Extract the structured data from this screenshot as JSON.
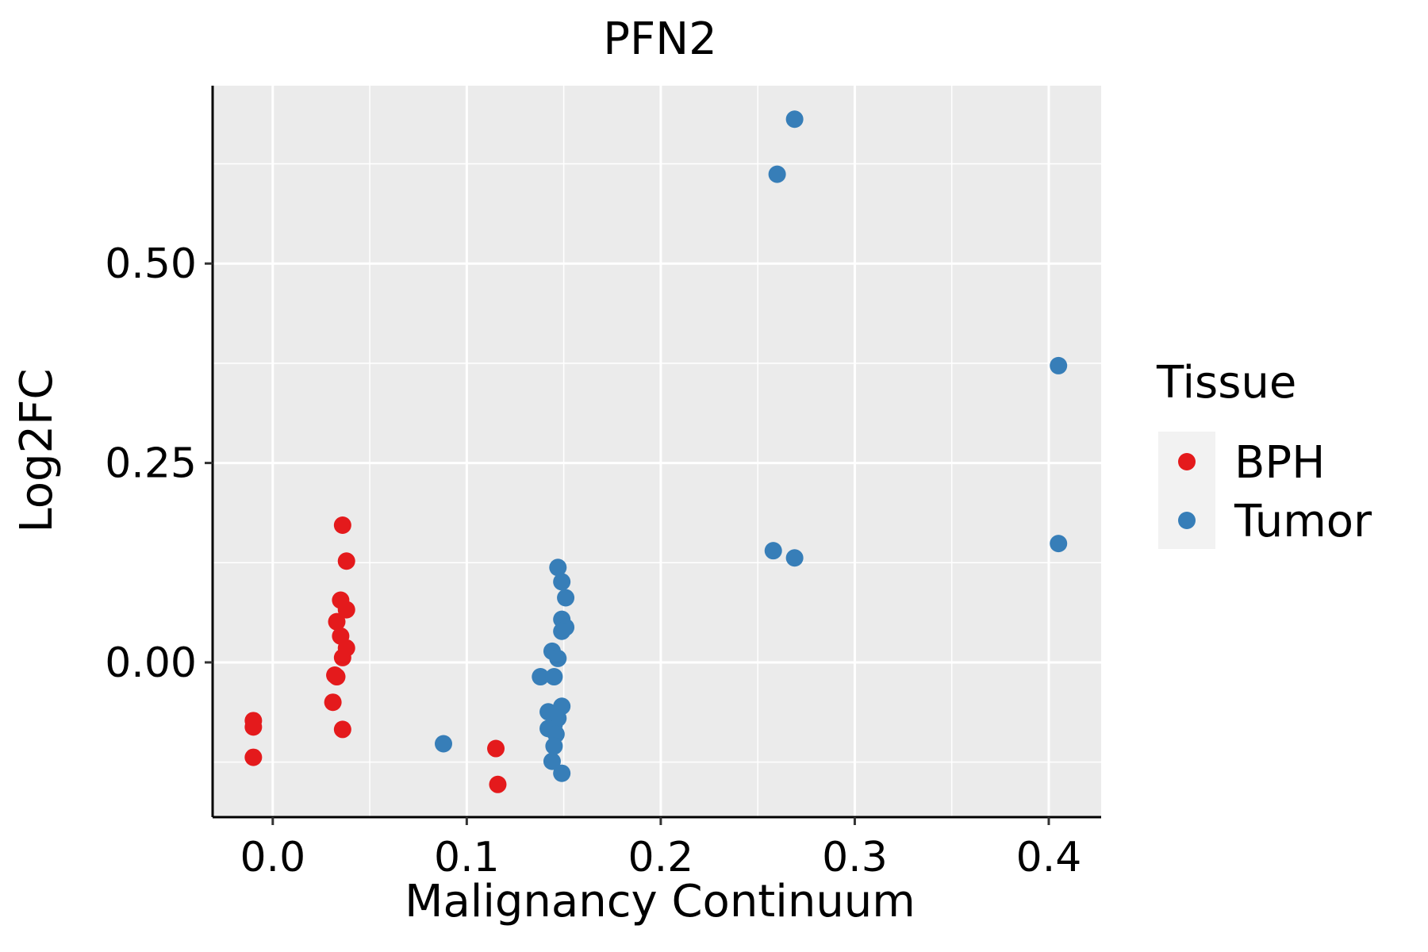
{
  "chart_data": {
    "type": "scatter",
    "title": "PFN2",
    "xlabel": "Malignancy Continuum",
    "ylabel": "Log2FC",
    "xlim": [
      -0.031,
      0.427
    ],
    "ylim": [
      -0.194,
      0.723
    ],
    "x_ticks": [
      0.0,
      0.1,
      0.2,
      0.3,
      0.4
    ],
    "x_tick_labels": [
      "0.0",
      "0.1",
      "0.2",
      "0.3",
      "0.4"
    ],
    "y_ticks": [
      0.0,
      0.25,
      0.5
    ],
    "y_tick_labels": [
      "0.00",
      "0.25",
      "0.50"
    ],
    "grid": true,
    "legend": {
      "title": "Tissue",
      "position": "right"
    },
    "series": [
      {
        "name": "BPH",
        "color": "#E41A1C",
        "points": [
          [
            -0.01,
            -0.073
          ],
          [
            -0.01,
            -0.081
          ],
          [
            -0.01,
            -0.119
          ],
          [
            0.036,
            0.172
          ],
          [
            0.038,
            0.127
          ],
          [
            0.035,
            0.078
          ],
          [
            0.038,
            0.066
          ],
          [
            0.033,
            0.051
          ],
          [
            0.035,
            0.033
          ],
          [
            0.038,
            0.018
          ],
          [
            0.036,
            0.006
          ],
          [
            0.032,
            -0.016
          ],
          [
            0.033,
            -0.018
          ],
          [
            0.031,
            -0.05
          ],
          [
            0.036,
            -0.084
          ],
          [
            0.115,
            -0.108
          ],
          [
            0.116,
            -0.153
          ]
        ]
      },
      {
        "name": "Tumor",
        "color": "#377EB8",
        "points": [
          [
            0.088,
            -0.102
          ],
          [
            0.147,
            0.119
          ],
          [
            0.149,
            0.101
          ],
          [
            0.151,
            0.081
          ],
          [
            0.149,
            0.054
          ],
          [
            0.151,
            0.044
          ],
          [
            0.149,
            0.039
          ],
          [
            0.144,
            0.014
          ],
          [
            0.147,
            0.005
          ],
          [
            0.138,
            -0.018
          ],
          [
            0.145,
            -0.018
          ],
          [
            0.149,
            -0.055
          ],
          [
            0.142,
            -0.062
          ],
          [
            0.147,
            -0.07
          ],
          [
            0.145,
            -0.078
          ],
          [
            0.142,
            -0.083
          ],
          [
            0.146,
            -0.09
          ],
          [
            0.145,
            -0.105
          ],
          [
            0.144,
            -0.124
          ],
          [
            0.149,
            -0.139
          ],
          [
            0.258,
            0.14
          ],
          [
            0.269,
            0.131
          ],
          [
            0.26,
            0.612
          ],
          [
            0.269,
            0.681
          ],
          [
            0.405,
            0.372
          ],
          [
            0.405,
            0.149
          ]
        ]
      }
    ]
  }
}
